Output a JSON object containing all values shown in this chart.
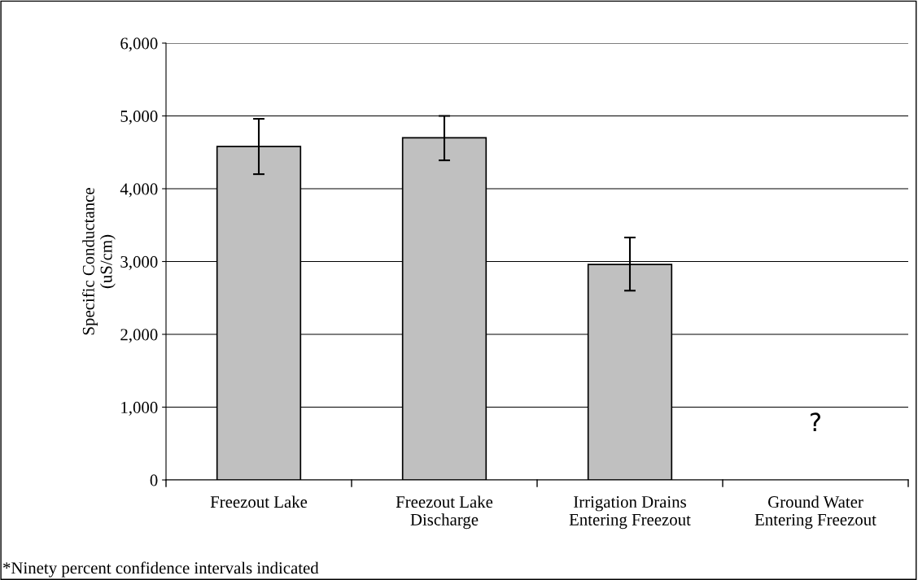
{
  "chart_data": {
    "type": "bar",
    "ylabel": "Specific Conductance\n(uS/cm)",
    "categories": [
      "Freezout Lake",
      "Freezout Lake\nDischarge",
      "Irrigation Drains\nEntering Freezout",
      "Ground Water\nEntering Freezout"
    ],
    "series": [
      {
        "color": "#c0c0c0",
        "values": [
          4580,
          4700,
          2960,
          null
        ],
        "errors": [
          [
            4200,
            4960
          ],
          [
            4390,
            5000
          ],
          [
            2600,
            3330
          ],
          null
        ]
      }
    ],
    "ylim": [
      0,
      6000
    ],
    "yticks": [
      {
        "value": 0,
        "label": "0"
      },
      {
        "value": 1000,
        "label": "1,000"
      },
      {
        "value": 2000,
        "label": "2,000"
      },
      {
        "value": 3000,
        "label": "3,000"
      },
      {
        "value": 4000,
        "label": "4,000"
      },
      {
        "value": 5000,
        "label": "5,000"
      },
      {
        "value": 6000,
        "label": "6,000"
      }
    ],
    "grid": "y",
    "annotations": [
      "?",
      "*Ninety percent confidence intervals indicated"
    ]
  }
}
